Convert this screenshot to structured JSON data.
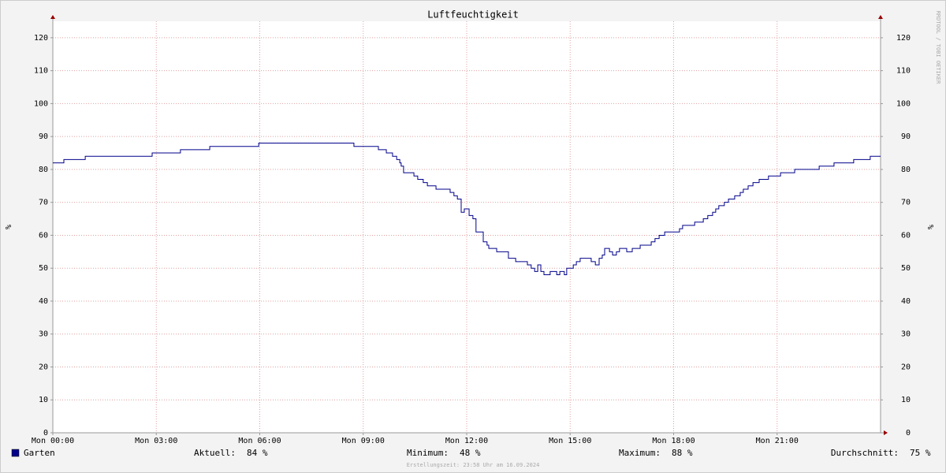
{
  "chart_data": {
    "type": "line",
    "title": "Luftfeuchtigkeit",
    "y_label": "%",
    "y2_label": "%",
    "watermark": "RRDTOOL / TOBI OETIKER",
    "footer": "Erstellungszeit: 23:58 Uhr am 16.09.2024",
    "xlim": [
      0,
      24
    ],
    "xticks": [
      {
        "value": 0,
        "label": "Mon 00:00"
      },
      {
        "value": 3,
        "label": "Mon 03:00"
      },
      {
        "value": 6,
        "label": "Mon 06:00"
      },
      {
        "value": 9,
        "label": "Mon 09:00"
      },
      {
        "value": 12,
        "label": "Mon 12:00"
      },
      {
        "value": 15,
        "label": "Mon 15:00"
      },
      {
        "value": 18,
        "label": "Mon 18:00"
      },
      {
        "value": 21,
        "label": "Mon 21:00"
      }
    ],
    "ylim": [
      0,
      125
    ],
    "yticks": [
      0,
      10,
      20,
      30,
      40,
      50,
      60,
      70,
      80,
      90,
      100,
      110,
      120
    ],
    "y2lim": [
      0,
      125
    ],
    "y2ticks": [
      0,
      10,
      20,
      30,
      40,
      50,
      60,
      70,
      80,
      90,
      100,
      110,
      120
    ],
    "grid": true,
    "step": true,
    "series": [
      {
        "name": "Garten",
        "color": "#00008b",
        "x": [
          0,
          0.32,
          0.94,
          2.88,
          3.7,
          4.55,
          5.97,
          8.73,
          9.44,
          9.67,
          9.85,
          9.97,
          10.06,
          10.1,
          10.17,
          10.47,
          10.58,
          10.74,
          10.86,
          11.11,
          11.52,
          11.63,
          11.73,
          11.84,
          11.93,
          12.07,
          12.18,
          12.27,
          12.48,
          12.59,
          12.64,
          12.87,
          13.21,
          13.42,
          13.76,
          13.87,
          13.97,
          14.06,
          14.15,
          14.24,
          14.42,
          14.61,
          14.7,
          14.83,
          14.9,
          15.09,
          15.18,
          15.29,
          15.61,
          15.73,
          15.84,
          15.93,
          16.0,
          16.14,
          16.23,
          16.34,
          16.43,
          16.64,
          16.8,
          17.03,
          17.35,
          17.46,
          17.58,
          17.74,
          18.17,
          18.26,
          18.61,
          18.86,
          18.99,
          19.13,
          19.22,
          19.31,
          19.47,
          19.59,
          19.77,
          19.93,
          20.02,
          20.16,
          20.3,
          20.48,
          20.75,
          21.1,
          21.51,
          22.22,
          22.65,
          23.22,
          23.7,
          24.0
        ],
        "values": [
          82,
          83,
          84,
          85,
          86,
          87,
          88,
          87,
          86,
          85,
          84,
          83,
          82,
          81,
          79,
          78,
          77,
          76,
          75,
          74,
          73,
          72,
          71,
          67,
          68,
          66,
          65,
          61,
          58,
          57,
          56,
          55,
          53,
          52,
          51,
          50,
          49,
          51,
          49,
          48,
          49,
          48,
          49,
          48,
          50,
          51,
          52,
          53,
          52,
          51,
          53,
          54,
          56,
          55,
          54,
          55,
          56,
          55,
          56,
          57,
          58,
          59,
          60,
          61,
          62,
          63,
          64,
          65,
          66,
          67,
          68,
          69,
          70,
          71,
          72,
          73,
          74,
          75,
          76,
          77,
          78,
          79,
          80,
          81,
          82,
          83,
          84,
          84
        ]
      }
    ],
    "stats": [
      {
        "label": "Aktuell:",
        "value": 84,
        "value_label": "84 %"
      },
      {
        "label": "Minimum:",
        "value": 48,
        "value_label": "48 %"
      },
      {
        "label": "Maximum:",
        "value": 88,
        "value_label": "88 %"
      },
      {
        "label": "Durchschnitt:",
        "value": 75,
        "value_label": "75 %"
      }
    ]
  }
}
